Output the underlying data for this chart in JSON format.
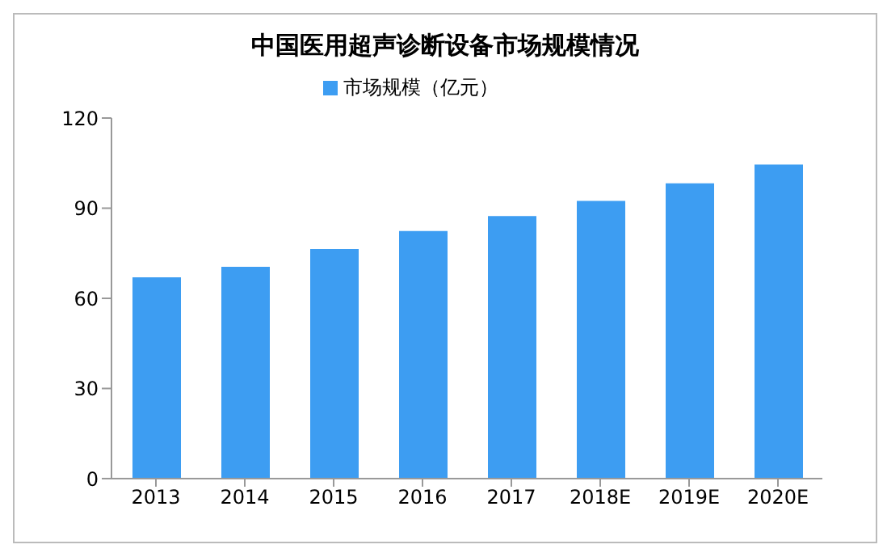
{
  "chart_data": {
    "type": "bar",
    "title": "中国医用超声诊断设备市场规模情况",
    "categories": [
      "2013",
      "2014",
      "2015",
      "2016",
      "2017",
      "2018E",
      "2019E",
      "2020E"
    ],
    "series": [
      {
        "name": "市场规模（亿元）",
        "color": "#3d9df2",
        "values": [
          67,
          70.5,
          76.4,
          82.4,
          87.4,
          92.4,
          98.3,
          104.5
        ]
      }
    ],
    "ylim": [
      0,
      120
    ],
    "yticks": [
      0,
      30,
      60,
      90,
      120
    ],
    "grid": false,
    "legend": "top"
  }
}
